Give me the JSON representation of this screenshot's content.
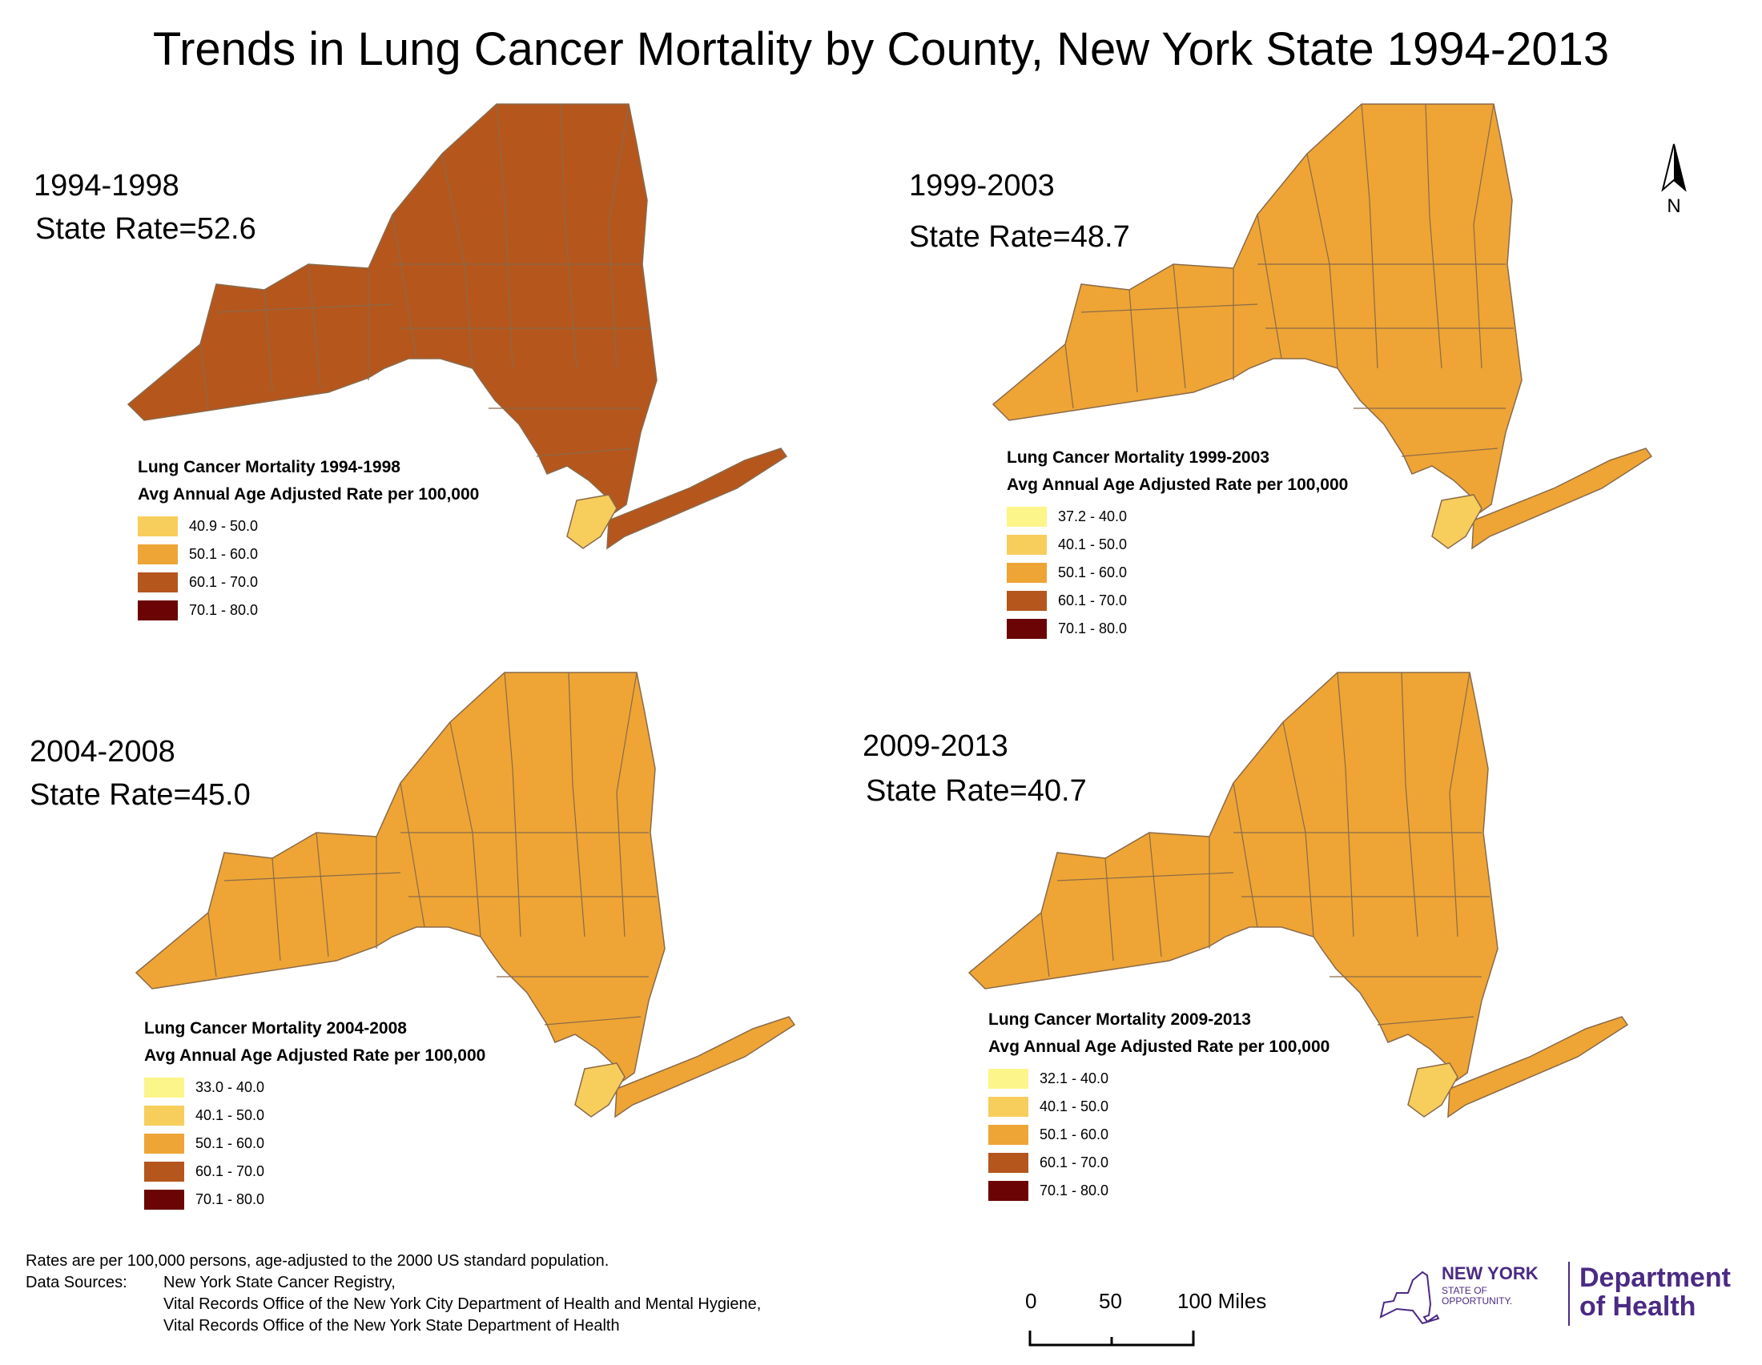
{
  "title": "Trends in Lung Cancer Mortality by County, New York State 1994-2013",
  "colors": {
    "bin_32_40": "#fbf58a",
    "bin_40_50": "#f7cd5c",
    "bin_50_60": "#eea535",
    "bin_60_70": "#b5561d",
    "bin_70_80": "#6b0505",
    "county_border": "#8a6a4a"
  },
  "legend_common_subtitle": "Avg Annual Age Adjusted Rate per 100,000",
  "panels": [
    {
      "period": "1994-1998",
      "state_rate": "State Rate=52.6",
      "legend_title": "Lung Cancer Mortality 1994-1998",
      "legend_subtitle": "Avg Annual Age Adjusted Rate per 100,000",
      "classes": [
        {
          "label": "40.9 - 50.0",
          "color": "#f7cd5c"
        },
        {
          "label": "50.1 - 60.0",
          "color": "#eea535"
        },
        {
          "label": "60.1 - 70.0",
          "color": "#b5561d"
        },
        {
          "label": "70.1 - 80.0",
          "color": "#6b0505"
        }
      ],
      "dominant_class": "60.1 - 70.0"
    },
    {
      "period": "1999-2003",
      "state_rate": "State Rate=48.7",
      "legend_title": "Lung Cancer Mortality 1999-2003",
      "legend_subtitle": "Avg Annual Age Adjusted Rate per 100,000",
      "classes": [
        {
          "label": "37.2 - 40.0",
          "color": "#fbf58a"
        },
        {
          "label": "40.1 - 50.0",
          "color": "#f7cd5c"
        },
        {
          "label": "50.1 - 60.0",
          "color": "#eea535"
        },
        {
          "label": "60.1 - 70.0",
          "color": "#b5561d"
        },
        {
          "label": "70.1 - 80.0",
          "color": "#6b0505"
        }
      ],
      "dominant_class": "50.1 - 60.0"
    },
    {
      "period": "2004-2008",
      "state_rate": "State Rate=45.0",
      "legend_title": "Lung Cancer Mortality 2004-2008",
      "legend_subtitle": "Avg Annual Age Adjusted Rate per 100,000",
      "classes": [
        {
          "label": "33.0 - 40.0",
          "color": "#fbf58a"
        },
        {
          "label": "40.1 - 50.0",
          "color": "#f7cd5c"
        },
        {
          "label": "50.1 - 60.0",
          "color": "#eea535"
        },
        {
          "label": "60.1 - 70.0",
          "color": "#b5561d"
        },
        {
          "label": "70.1 - 80.0",
          "color": "#6b0505"
        }
      ],
      "dominant_class": "50.1 - 60.0"
    },
    {
      "period": "2009-2013",
      "state_rate": "State Rate=40.7",
      "legend_title": "Lung Cancer Mortality 2009-2013",
      "legend_subtitle": "Avg Annual Age Adjusted Rate per 100,000",
      "classes": [
        {
          "label": "32.1 - 40.0",
          "color": "#fbf58a"
        },
        {
          "label": "40.1 - 50.0",
          "color": "#f7cd5c"
        },
        {
          "label": "50.1 - 60.0",
          "color": "#eea535"
        },
        {
          "label": "60.1 - 70.0",
          "color": "#b5561d"
        },
        {
          "label": "70.1 - 80.0",
          "color": "#6b0505"
        }
      ],
      "dominant_class": "50.1 - 60.0"
    }
  ],
  "notes": {
    "line1": "Rates are per 100,000 persons, age-adjusted to the 2000 US standard population.",
    "sources_key": "Data Sources:",
    "sources": [
      "New York State Cancer Registry,",
      "Vital Records Office of the New York City Department of Health and Mental Hygiene,",
      "Vital Records Office of the New York State Department of Health"
    ]
  },
  "scale_bar": {
    "t0": "0",
    "t1": "50",
    "t2": "100 Miles"
  },
  "north_label": "N",
  "logo": {
    "line1": "NEW YORK",
    "line2a": "STATE OF",
    "line2b": "OPPORTUNITY.",
    "dept1": "Department",
    "dept2": "of Health"
  }
}
